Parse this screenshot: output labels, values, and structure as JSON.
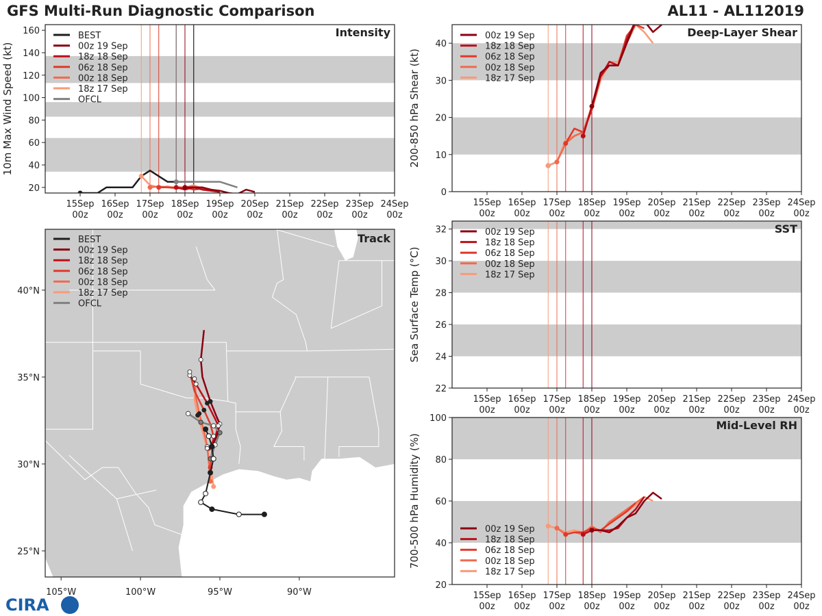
{
  "header": {
    "title": "GFS Multi-Run Diagnostic Comparison",
    "storm_id": "AL11 - AL112019"
  },
  "logo": {
    "text": "CIRA"
  },
  "colors": {
    "best": "#1e1e1e",
    "ofcl": "#808080",
    "band": "#cccccc",
    "runs": [
      "#8b0010",
      "#bb0f1a",
      "#e0392a",
      "#f06a4e",
      "#f99a78"
    ]
  },
  "time_axis": {
    "ticks": [
      "15Sep 00z",
      "16Sep 00z",
      "17Sep 00z",
      "18Sep 00z",
      "19Sep 00z",
      "20Sep 00z",
      "21Sep 00z",
      "22Sep 00z",
      "23Sep 00z",
      "24Sep 00z"
    ],
    "range_days": [
      0,
      10
    ],
    "init_times_days": [
      4.0,
      3.75,
      3.25,
      3.0,
      2.75
    ],
    "ofcl_init_days": 3.75,
    "best_init_days": 4.0
  },
  "chart_data": [
    {
      "id": "intensity",
      "type": "line",
      "title": "Intensity",
      "ylabel": "10m Max Wind Speed (kt)",
      "ylim": [
        15,
        165
      ],
      "yticks": [
        20,
        40,
        60,
        80,
        100,
        120,
        140,
        160
      ],
      "bands": [
        [
          34,
          64
        ],
        [
          83,
          96
        ],
        [
          113,
          137
        ]
      ],
      "legend": [
        "BEST",
        "00z 19 Sep",
        "18z 18 Sep",
        "06z 18 Sep",
        "00z 18 Sep",
        "18z 17 Sep",
        "OFCL"
      ],
      "best": {
        "t": [
          1.0,
          1.5,
          1.75,
          2.0,
          2.5,
          2.75,
          3.0,
          3.25,
          3.5,
          4.0,
          4.25
        ],
        "v": [
          15,
          15,
          20,
          20,
          20,
          30,
          35,
          30,
          25,
          25,
          25
        ]
      },
      "ofcl": {
        "t": [
          3.75,
          4.0,
          4.25,
          4.5,
          5.0,
          5.5
        ],
        "v": [
          25,
          25,
          25,
          25,
          25,
          20
        ]
      },
      "runs": [
        {
          "name": "00z 19 Sep",
          "t": [
            4.0,
            4.25,
            4.5,
            4.75,
            5.0,
            5.25,
            5.5,
            5.75,
            6.0
          ],
          "v": [
            20,
            20,
            20,
            18,
            17,
            15,
            14,
            18,
            16
          ]
        },
        {
          "name": "18z 18 Sep",
          "t": [
            3.75,
            4.0,
            4.25,
            4.5,
            4.75,
            5.0
          ],
          "v": [
            20,
            18,
            20,
            18,
            17,
            16
          ]
        },
        {
          "name": "06z 18 Sep",
          "t": [
            3.25,
            3.5,
            3.75,
            4.0,
            4.25,
            4.5,
            4.75,
            5.0
          ],
          "v": [
            20,
            20,
            20,
            20,
            18,
            19,
            17,
            16
          ]
        },
        {
          "name": "00z 18 Sep",
          "t": [
            3.0,
            3.25,
            3.5,
            3.75,
            4.0,
            4.25,
            4.5,
            4.75
          ],
          "v": [
            20,
            21,
            20,
            19,
            20,
            21,
            18,
            17
          ]
        },
        {
          "name": "18z 17 Sep",
          "t": [
            2.75,
            3.0,
            3.25,
            3.5,
            3.75,
            4.0,
            4.25,
            4.5
          ],
          "v": [
            30,
            22,
            20,
            21,
            19,
            20,
            22,
            19
          ]
        }
      ]
    },
    {
      "id": "shear",
      "type": "line",
      "title": "Deep-Layer Shear",
      "ylabel": "200-850 hPa Shear (kt)",
      "ylim": [
        0,
        45
      ],
      "yticks": [
        0,
        10,
        20,
        30,
        40
      ],
      "bands": [
        [
          10,
          20
        ],
        [
          30,
          40
        ]
      ],
      "legend": [
        "00z 19 Sep",
        "18z 18 Sep",
        "06z 18 Sep",
        "00z 18 Sep",
        "18z 17 Sep"
      ],
      "runs": [
        {
          "name": "00z 19 Sep",
          "t": [
            4.0,
            4.25,
            4.5,
            4.75,
            5.0,
            5.25,
            5.5,
            5.75,
            6.0
          ],
          "v": [
            23,
            32,
            34,
            34,
            40,
            46,
            46,
            43,
            45
          ]
        },
        {
          "name": "18z 18 Sep",
          "t": [
            3.75,
            4.0,
            4.25,
            4.5,
            4.75,
            5.0,
            5.25,
            5.5
          ],
          "v": [
            15,
            23,
            31,
            35,
            34,
            41,
            46,
            46
          ]
        },
        {
          "name": "06z 18 Sep",
          "t": [
            3.25,
            3.5,
            3.75,
            4.0,
            4.25,
            4.5,
            4.75,
            5.0,
            5.25,
            5.5
          ],
          "v": [
            13,
            17,
            16,
            22,
            31,
            34,
            34,
            42,
            45,
            44
          ]
        },
        {
          "name": "00z 18 Sep",
          "t": [
            3.0,
            3.25,
            3.5,
            3.75,
            4.0,
            4.25,
            4.5,
            4.75,
            5.0,
            5.25,
            5.5,
            5.75
          ],
          "v": [
            8,
            13,
            15,
            16,
            23,
            31,
            35,
            34,
            40,
            45,
            46,
            43
          ]
        },
        {
          "name": "18z 17 Sep",
          "t": [
            2.75,
            3.0,
            3.25,
            3.5,
            3.75,
            4.0,
            4.25,
            4.5,
            4.75,
            5.0,
            5.25,
            5.5,
            5.75
          ],
          "v": [
            7,
            8,
            14,
            15,
            16,
            22,
            30,
            35,
            35,
            41,
            45,
            43,
            40
          ]
        }
      ],
      "best": {
        "t": [
          2.75,
          3.0
        ],
        "v": [
          7,
          8
        ]
      }
    },
    {
      "id": "sst",
      "type": "line",
      "title": "SST",
      "ylabel": "Sea Surface Temp (°C)",
      "ylim": [
        22,
        32.5
      ],
      "yticks": [
        22,
        24,
        26,
        28,
        30,
        32
      ],
      "bands": [
        [
          24,
          26
        ],
        [
          28,
          30
        ],
        [
          32,
          32.5
        ]
      ],
      "legend": [
        "00z 19 Sep",
        "18z 18 Sep",
        "06z 18 Sep",
        "00z 18 Sep",
        "18z 17 Sep"
      ],
      "runs": []
    },
    {
      "id": "rh",
      "type": "line",
      "title": "Mid-Level RH",
      "ylabel": "700-500 hPa Humidity (%)",
      "ylim": [
        20,
        100
      ],
      "yticks": [
        20,
        40,
        60,
        80,
        100
      ],
      "bands": [
        [
          40,
          60
        ],
        [
          80,
          100
        ]
      ],
      "legend": [
        "00z 19 Sep",
        "18z 18 Sep",
        "06z 18 Sep",
        "00z 18 Sep",
        "18z 17 Sep"
      ],
      "runs": [
        {
          "name": "00z 19 Sep",
          "t": [
            4.0,
            4.25,
            4.5,
            4.75,
            5.0,
            5.25,
            5.5,
            5.75,
            6.0
          ],
          "v": [
            46,
            46,
            45,
            48,
            52,
            54,
            60,
            64,
            61
          ]
        },
        {
          "name": "18z 18 Sep",
          "t": [
            3.75,
            4.0,
            4.25,
            4.5,
            4.75,
            5.0,
            5.25,
            5.5
          ],
          "v": [
            44,
            46,
            46,
            46,
            47,
            52,
            56,
            62
          ]
        },
        {
          "name": "06z 18 Sep",
          "t": [
            3.25,
            3.5,
            3.75,
            4.0,
            4.25,
            4.5,
            4.75,
            5.0,
            5.25
          ],
          "v": [
            44,
            45,
            45,
            47,
            46,
            49,
            52,
            55,
            59
          ]
        },
        {
          "name": "00z 18 Sep",
          "t": [
            3.0,
            3.25,
            3.5,
            3.75,
            4.0,
            4.25,
            4.5,
            4.75,
            5.0,
            5.25,
            5.5
          ],
          "v": [
            47,
            44,
            45,
            44,
            48,
            45,
            50,
            53,
            56,
            59,
            62
          ]
        },
        {
          "name": "18z 17 Sep",
          "t": [
            2.75,
            3.0,
            3.25,
            3.5,
            3.75,
            4.0,
            4.25,
            4.5,
            4.75,
            5.0,
            5.25,
            5.5,
            5.75
          ],
          "v": [
            48,
            47,
            45,
            46,
            45,
            48,
            45,
            50,
            52,
            55,
            58,
            62,
            60
          ]
        }
      ]
    },
    {
      "id": "track",
      "type": "line",
      "title": "Track",
      "lon_range": [
        -106,
        -84
      ],
      "lat_range": [
        23.5,
        43.5
      ],
      "xticks": [
        -105,
        -100,
        -95,
        -90
      ],
      "xtick_labels": [
        "105°W",
        "100°W",
        "95°W",
        "90°W"
      ],
      "yticks": [
        25,
        30,
        35,
        40
      ],
      "ytick_labels": [
        "25°N",
        "30°N",
        "35°N",
        "40°N"
      ],
      "legend": [
        "BEST",
        "00z 19 Sep",
        "18z 18 Sep",
        "06z 18 Sep",
        "00z 18 Sep",
        "18z 17 Sep",
        "OFCL"
      ],
      "best": {
        "lon": [
          -92.2,
          -93.8,
          -95.5,
          -96.2,
          -95.9,
          -95.6,
          -95.4,
          -95.5,
          -95.7,
          -95.9
        ],
        "lat": [
          27.1,
          27.1,
          27.4,
          27.8,
          28.3,
          29.5,
          30.3,
          31.0,
          31.6,
          32.0
        ],
        "filled": [
          true,
          false,
          true,
          false,
          false,
          true,
          false,
          true,
          false,
          true
        ]
      },
      "ofcl": {
        "lon": [
          -95.6,
          -95.3,
          -95.0,
          -95.4,
          -96.2,
          -97.0
        ],
        "lat": [
          30.3,
          31.1,
          31.8,
          32.2,
          32.4,
          32.9
        ]
      },
      "runs": [
        {
          "name": "00z 19 Sep",
          "lon": [
            -95.5,
            -95.2,
            -95.0,
            -95.2,
            -95.6,
            -96.1,
            -96.2,
            -96.0
          ],
          "lat": [
            31.0,
            31.6,
            32.3,
            32.7,
            33.6,
            35.0,
            36.0,
            37.7
          ]
        },
        {
          "name": "18z 18 Sep",
          "lon": [
            -95.7,
            -95.3,
            -95.1,
            -95.3,
            -95.8,
            -96.5,
            -96.9
          ],
          "lat": [
            30.9,
            31.5,
            32.2,
            32.6,
            33.5,
            34.6,
            35.1
          ]
        },
        {
          "name": "06z 18 Sep",
          "lon": [
            -95.6,
            -95.5,
            -95.4,
            -95.6,
            -96.0,
            -96.6,
            -96.9
          ],
          "lat": [
            29.8,
            30.7,
            31.6,
            32.3,
            33.1,
            34.2,
            35.3
          ]
        },
        {
          "name": "00z 18 Sep",
          "lon": [
            -95.6,
            -95.7,
            -95.8,
            -96.0,
            -96.3,
            -96.5,
            -96.6
          ],
          "lat": [
            29.0,
            30.1,
            31.0,
            31.9,
            32.9,
            33.8,
            34.9
          ]
        },
        {
          "name": "18z 17 Sep",
          "lon": [
            -95.4,
            -95.6,
            -95.8,
            -96.1,
            -96.4,
            -96.6,
            -96.5
          ],
          "lat": [
            28.7,
            29.9,
            30.9,
            31.9,
            32.8,
            33.7,
            34.6
          ]
        }
      ]
    }
  ]
}
